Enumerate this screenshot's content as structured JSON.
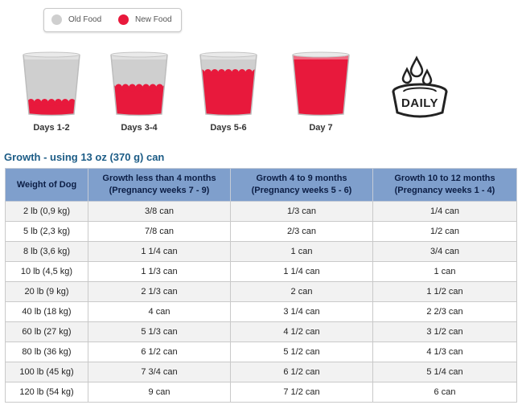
{
  "legend": {
    "old_label": "Old Food",
    "new_label": "New Food",
    "old_color": "#cfcfcf",
    "new_color": "#e8193c"
  },
  "transition": [
    {
      "label": "Days 1-2",
      "new_fraction": 0.25
    },
    {
      "label": "Days 3-4",
      "new_fraction": 0.5
    },
    {
      "label": "Days 5-6",
      "new_fraction": 0.75
    },
    {
      "label": "Day 7",
      "new_fraction": 1.0
    }
  ],
  "daily_icon": {
    "text": "DAILY",
    "icon": "water-bowl-icon"
  },
  "section_title": "Growth - using 13 oz (370 g) can",
  "table": {
    "headers": [
      {
        "line1": "Weight of Dog",
        "line2": ""
      },
      {
        "line1": "Growth less than 4 months",
        "line2": "(Pregnancy weeks 7 - 9)"
      },
      {
        "line1": "Growth 4 to 9 months",
        "line2": "(Pregnancy weeks 5 - 6)"
      },
      {
        "line1": "Growth 10 to 12 months",
        "line2": "(Pregnancy weeks 1 - 4)"
      }
    ],
    "rows": [
      [
        "2 lb (0,9 kg)",
        "3/8 can",
        "1/3 can",
        "1/4 can"
      ],
      [
        "5 lb (2,3 kg)",
        "7/8 can",
        "2/3 can",
        "1/2 can"
      ],
      [
        "8 lb (3,6 kg)",
        "1 1/4 can",
        "1 can",
        "3/4 can"
      ],
      [
        "10 lb (4,5 kg)",
        "1 1/3 can",
        "1 1/4 can",
        "1 can"
      ],
      [
        "20 lb (9 kg)",
        "2 1/3 can",
        "2 can",
        "1 1/2 can"
      ],
      [
        "40 lb (18 kg)",
        "4 can",
        "3 1/4 can",
        "2 2/3 can"
      ],
      [
        "60 lb (27 kg)",
        "5 1/3 can",
        "4 1/2 can",
        "3 1/2 can"
      ],
      [
        "80 lb (36 kg)",
        "6 1/2 can",
        "5 1/2 can",
        "4 1/3 can"
      ],
      [
        "100 lb (45 kg)",
        "7 3/4 can",
        "6 1/2 can",
        "5 1/4 can"
      ],
      [
        "120 lb (54 kg)",
        "9 can",
        "7 1/2 can",
        "6 can"
      ]
    ]
  }
}
